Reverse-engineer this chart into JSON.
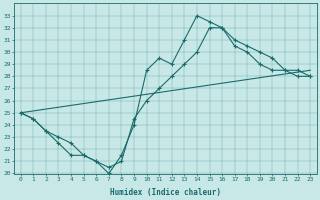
{
  "xlabel": "Humidex (Indice chaleur)",
  "ylabel": "",
  "background_color": "#c8e8e8",
  "line_color": "#1a6b6b",
  "xlim": [
    -0.5,
    23.5
  ],
  "ylim": [
    20,
    34
  ],
  "yticks": [
    20,
    21,
    22,
    23,
    24,
    25,
    26,
    27,
    28,
    29,
    30,
    31,
    32,
    33
  ],
  "xticks": [
    0,
    1,
    2,
    3,
    4,
    5,
    6,
    7,
    8,
    9,
    10,
    11,
    12,
    13,
    14,
    15,
    16,
    17,
    18,
    19,
    20,
    21,
    22,
    23
  ],
  "series": [
    {
      "x": [
        0,
        1,
        2,
        3,
        4,
        5,
        6,
        7,
        8,
        9,
        10,
        11,
        12,
        13,
        14,
        15,
        16,
        17,
        18,
        19,
        20,
        21,
        22,
        23
      ],
      "y": [
        25,
        24.5,
        23.5,
        23,
        22.5,
        21.5,
        21,
        20,
        21.5,
        24,
        28.5,
        29.5,
        29,
        31,
        33,
        32.5,
        32,
        30.5,
        30,
        29,
        28.5,
        28.5,
        28,
        28
      ]
    },
    {
      "x": [
        0,
        1,
        2,
        3,
        4,
        5,
        6,
        7,
        8,
        9,
        10,
        11,
        12,
        13,
        14,
        15,
        16,
        17,
        18,
        19,
        20,
        21,
        22,
        23
      ],
      "y": [
        25,
        24.5,
        23.5,
        22.5,
        21.5,
        21.5,
        21,
        20.5,
        21,
        24.5,
        26,
        27,
        28,
        29,
        30,
        32,
        32,
        31,
        30.5,
        30,
        29.5,
        28.5,
        28.5,
        28
      ]
    },
    {
      "x": [
        0,
        23
      ],
      "y": [
        25,
        28.5
      ]
    }
  ]
}
